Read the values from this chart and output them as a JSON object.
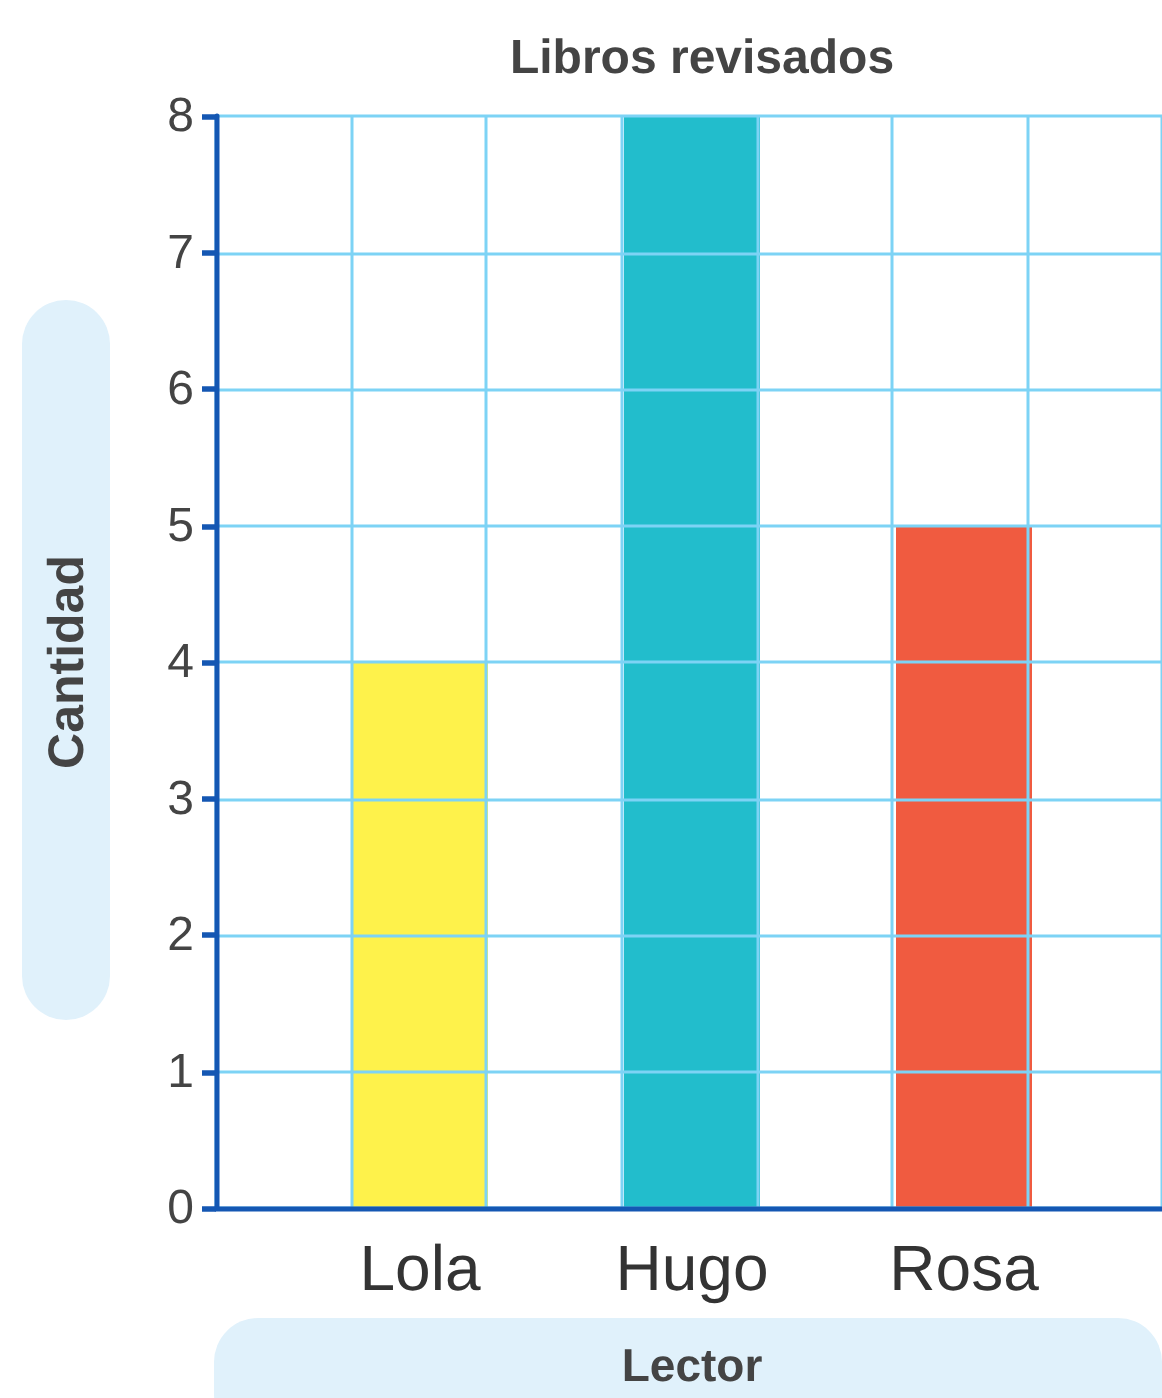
{
  "chart_data": {
    "type": "bar",
    "title": "Libros revisados",
    "xlabel": "Lector",
    "ylabel": "Cantidad",
    "categories": [
      "Lola",
      "Hugo",
      "Rosa"
    ],
    "values": [
      4,
      8,
      5
    ],
    "colors": [
      "#fef24b",
      "#22bdcc",
      "#f05b40"
    ],
    "ylim": [
      0,
      8
    ],
    "yticks": [
      0,
      1,
      2,
      3,
      4,
      5,
      6,
      7,
      8
    ],
    "grid": true
  }
}
